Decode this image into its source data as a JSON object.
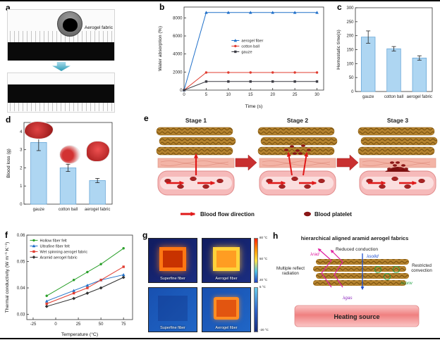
{
  "panel_a": {
    "label": "a",
    "annotation": "Aerogel fabric"
  },
  "panel_b": {
    "label": "b"
  },
  "panel_c": {
    "label": "c"
  },
  "panel_d": {
    "label": "d"
  },
  "panel_e": {
    "label": "e",
    "stages": [
      "Stage 1",
      "Stage 2",
      "Stage 3"
    ],
    "legend": [
      {
        "icon": "red-arrow",
        "label": "Blood flow direction"
      },
      {
        "icon": "platelet",
        "label": "Blood platelet"
      }
    ]
  },
  "panel_f": {
    "label": "f"
  },
  "panel_g": {
    "label": "g",
    "images": [
      {
        "label": "Superfine fiber"
      },
      {
        "label": "Aerogel fiber"
      },
      {
        "label": "Superfine fiber"
      },
      {
        "label": "Aerogel fiber"
      }
    ],
    "scale_top": [
      "80 °C",
      "50 °C",
      "20 °C"
    ],
    "scale_bottom": [
      "5 °C",
      "-20 °C"
    ]
  },
  "panel_h": {
    "label": "h",
    "title": "hierarchical aligned aramid aerogel fabrics",
    "labels": {
      "reduced_conduction": "Reduced conduction",
      "multiple_reflect_radiation": "Multiple reflect radiation",
      "restricted_convection": "Restricted convection",
      "heating_source": "Heating source",
      "lambda_rad": "λrad",
      "lambda_solid": "λsolid",
      "lambda_conv": "λconv",
      "lambda_gas": "λgas"
    }
  },
  "chart_data": [
    {
      "id": "b",
      "type": "line",
      "xlabel": "Time (s)",
      "ylabel": "Water absorption (%)",
      "xlim": [
        0,
        31.5
      ],
      "ylim": [
        0,
        9200
      ],
      "xticks": [
        0,
        5,
        10,
        15,
        20,
        25,
        30
      ],
      "yticks": [
        0,
        2000,
        4000,
        6000,
        8000
      ],
      "x": [
        0,
        5,
        10,
        15,
        20,
        25,
        30
      ],
      "series": [
        {
          "name": "aerogel fiber",
          "color": "#2070c9",
          "marker": "triangle",
          "values": [
            0,
            8600,
            8600,
            8600,
            8600,
            8600,
            8600
          ]
        },
        {
          "name": "cotton ball",
          "color": "#e03c30",
          "marker": "circle",
          "values": [
            0,
            1950,
            1950,
            1950,
            1950,
            1950,
            1950
          ]
        },
        {
          "name": "gauze",
          "color": "#3c3c44",
          "marker": "square",
          "values": [
            0,
            950,
            950,
            950,
            950,
            950,
            950
          ]
        }
      ],
      "legend_fx": 0.34,
      "legend_fy": 0.36,
      "grid": false
    },
    {
      "id": "c",
      "type": "bar",
      "ylabel": "Hemostatic time(s)",
      "categories": [
        "gauze",
        "cotton ball",
        "aerogel fabric"
      ],
      "values": [
        195,
        153,
        120
      ],
      "errors": [
        22,
        8,
        8
      ],
      "ylim": [
        0,
        300
      ],
      "yticks": [
        0,
        50,
        100,
        150,
        200,
        250,
        300
      ],
      "bar_color": "#aed6f2",
      "bar_edge": "#6aa8d8"
    },
    {
      "id": "d",
      "type": "bar",
      "ylabel": "Blood loss (g)",
      "categories": [
        "gauze",
        "cotton ball",
        "aerogel fabric"
      ],
      "values": [
        3.4,
        2.0,
        1.3
      ],
      "errors": [
        0.45,
        0.2,
        0.12
      ],
      "ylim": [
        0,
        4.5
      ],
      "yticks": [
        0,
        1,
        2,
        3,
        4
      ],
      "bar_color": "#aed6f2",
      "bar_edge": "#6aa8d8"
    },
    {
      "id": "f",
      "type": "line",
      "xlabel": "Temperature (°C)",
      "ylabel": "Thermal conductivity (W m⁻¹ K⁻¹)",
      "xlim": [
        -32,
        85
      ],
      "ylim": [
        0.028,
        0.06
      ],
      "xticks": [
        -25,
        0,
        25,
        50,
        75
      ],
      "yticks": [
        0.03,
        0.04,
        0.05,
        0.06
      ],
      "x": [
        -10,
        20,
        35,
        50,
        75
      ],
      "series": [
        {
          "name": "Hollow fiber felt",
          "color": "#2ba02b",
          "marker": "circle",
          "values": [
            0.037,
            0.043,
            0.046,
            0.049,
            0.055
          ]
        },
        {
          "name": "Ultrafine fiber felt",
          "color": "#2070c9",
          "marker": "triangle",
          "values": [
            0.035,
            0.039,
            0.041,
            0.043,
            0.045
          ]
        },
        {
          "name": "Wet spinning aerogel fabric",
          "color": "#e03c30",
          "marker": "square",
          "values": [
            0.034,
            0.038,
            0.04,
            0.043,
            0.048
          ]
        },
        {
          "name": "Aramid aerogel fabric",
          "color": "#303030",
          "marker": "diamond",
          "values": [
            0.033,
            0.036,
            0.038,
            0.04,
            0.044
          ]
        }
      ],
      "legend_fx": 0.03,
      "legend_fy": 0.02,
      "grid": false
    }
  ]
}
